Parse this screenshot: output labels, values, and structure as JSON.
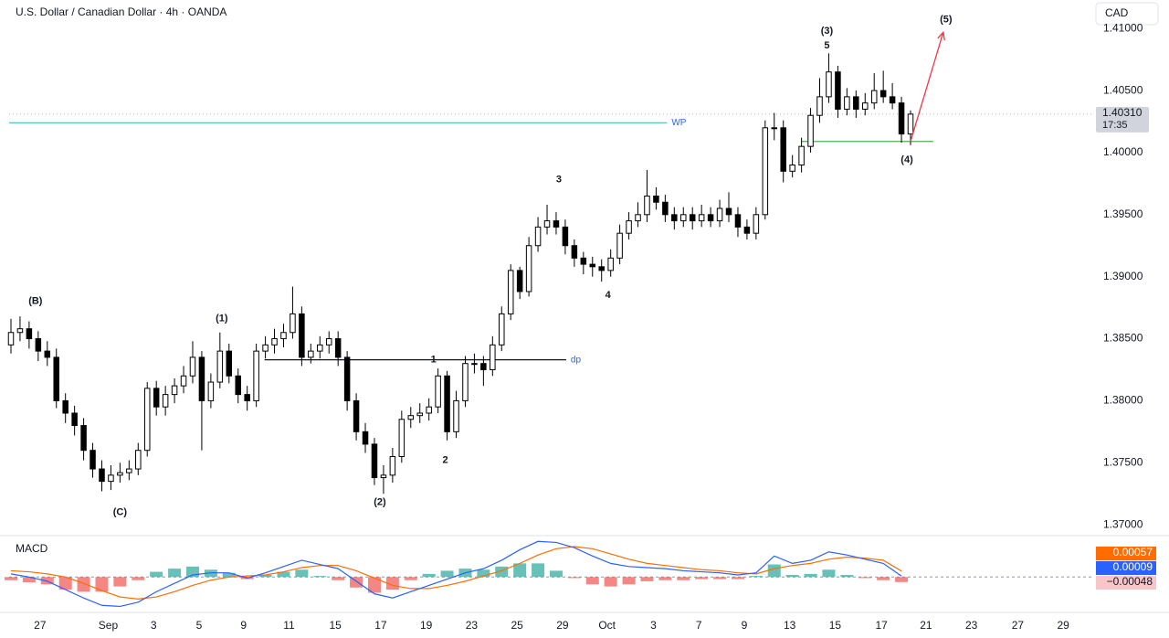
{
  "chart_data": {
    "type": "candlestick",
    "title": "U.S. Dollar / Canadian Dollar · 4h · OANDA",
    "currency": "CAD",
    "up_color": "#ffffff",
    "down_color": "#000000",
    "border_color": "#000000",
    "x": [
      0,
      1,
      2,
      3,
      4,
      5,
      6,
      7,
      8,
      9,
      10,
      11,
      12,
      13,
      14,
      15,
      16,
      17,
      18,
      19,
      20,
      21,
      22,
      23,
      24,
      25,
      26,
      27,
      28,
      29,
      30,
      31,
      32,
      33,
      34,
      35,
      36,
      37,
      38,
      39,
      40,
      41,
      42,
      43,
      44,
      45,
      46,
      47,
      48,
      49,
      50,
      51,
      52,
      53,
      54,
      55,
      56,
      57,
      58,
      59,
      60,
      61,
      62,
      63,
      64,
      65,
      66,
      67,
      68,
      69,
      70,
      71,
      72,
      73,
      74,
      75,
      76,
      77,
      78,
      79,
      80,
      81,
      82,
      83,
      84,
      85,
      86,
      87,
      88,
      89,
      90,
      91,
      92,
      93,
      94,
      95,
      96,
      97,
      98,
      99
    ],
    "open": [
      1.3845,
      1.3855,
      1.3858,
      1.385,
      1.384,
      1.3835,
      1.38,
      1.379,
      1.378,
      1.376,
      1.3745,
      1.3735,
      1.374,
      1.3742,
      1.3745,
      1.376,
      1.381,
      1.3795,
      1.3805,
      1.3812,
      1.382,
      1.3835,
      1.38,
      1.3815,
      1.384,
      1.382,
      1.3805,
      1.38,
      1.384,
      1.3845,
      1.385,
      1.3855,
      1.387,
      1.3835,
      1.384,
      1.3845,
      1.385,
      1.3835,
      1.38,
      1.3775,
      1.3765,
      1.3738,
      1.374,
      1.3755,
      1.3785,
      1.3788,
      1.379,
      1.3795,
      1.382,
      1.3775,
      1.38,
      1.383,
      1.383,
      1.3825,
      1.3845,
      1.387,
      1.3905,
      1.3888,
      1.3925,
      1.394,
      1.3945,
      1.394,
      1.3925,
      1.3915,
      1.391,
      1.3908,
      1.3905,
      1.3915,
      1.3935,
      1.3945,
      1.395,
      1.3965,
      1.396,
      1.395,
      1.3945,
      1.395,
      1.3945,
      1.395,
      1.3945,
      1.3955,
      1.395,
      1.394,
      1.3935,
      1.395,
      1.402,
      1.402,
      1.3985,
      1.399,
      1.4005,
      1.403,
      1.4045,
      1.4065,
      1.4035,
      1.4045,
      1.4035,
      1.404,
      1.405,
      1.4045,
      1.404,
      1.4015
    ],
    "high": [
      1.3866,
      1.3868,
      1.3864,
      1.3856,
      1.3848,
      1.3842,
      1.3806,
      1.3796,
      1.3786,
      1.3766,
      1.3752,
      1.3748,
      1.375,
      1.3752,
      1.3766,
      1.3815,
      1.3816,
      1.3812,
      1.3818,
      1.3828,
      1.3848,
      1.384,
      1.3822,
      1.3855,
      1.3846,
      1.3826,
      1.3812,
      1.3846,
      1.3852,
      1.3858,
      1.3862,
      1.3892,
      1.3876,
      1.3846,
      1.3852,
      1.3856,
      1.3856,
      1.384,
      1.3806,
      1.3782,
      1.377,
      1.3748,
      1.3762,
      1.3792,
      1.3795,
      1.3798,
      1.3802,
      1.3826,
      1.3824,
      1.3808,
      1.3836,
      1.3838,
      1.3836,
      1.3852,
      1.3876,
      1.391,
      1.3908,
      1.3932,
      1.3948,
      1.3958,
      1.3952,
      1.3946,
      1.393,
      1.392,
      1.3916,
      1.3914,
      1.3922,
      1.3942,
      1.3952,
      1.396,
      1.3986,
      1.3972,
      1.3966,
      1.3956,
      1.3956,
      1.3956,
      1.3958,
      1.3956,
      1.3962,
      1.3968,
      1.3956,
      1.3946,
      1.3956,
      1.4026,
      1.4032,
      1.4026,
      1.3998,
      1.4012,
      1.4036,
      1.406,
      1.408,
      1.407,
      1.4052,
      1.405,
      1.4048,
      1.4064,
      1.4066,
      1.4056,
      1.4045,
      1.4034
    ],
    "low": [
      1.3838,
      1.3848,
      1.3842,
      1.3832,
      1.3828,
      1.3794,
      1.3782,
      1.3772,
      1.3752,
      1.3738,
      1.3727,
      1.3728,
      1.3734,
      1.3736,
      1.374,
      1.3755,
      1.3788,
      1.3788,
      1.3798,
      1.3806,
      1.3814,
      1.376,
      1.3794,
      1.381,
      1.3814,
      1.3798,
      1.3792,
      1.3795,
      1.3834,
      1.3838,
      1.3843,
      1.385,
      1.3828,
      1.383,
      1.3834,
      1.3838,
      1.3828,
      1.3792,
      1.3768,
      1.3758,
      1.3732,
      1.3725,
      1.3734,
      1.375,
      1.3778,
      1.3782,
      1.3784,
      1.379,
      1.3768,
      1.377,
      1.3795,
      1.3822,
      1.3812,
      1.382,
      1.384,
      1.3865,
      1.3882,
      1.3884,
      1.392,
      1.3934,
      1.3934,
      1.3918,
      1.3908,
      1.3902,
      1.39,
      1.3896,
      1.39,
      1.391,
      1.393,
      1.394,
      1.3944,
      1.3954,
      1.3944,
      1.3938,
      1.394,
      1.3938,
      1.394,
      1.394,
      1.394,
      1.3944,
      1.3932,
      1.393,
      1.393,
      1.3946,
      1.401,
      1.3976,
      1.398,
      1.3984,
      1.4,
      1.4024,
      1.404,
      1.4028,
      1.403,
      1.4028,
      1.403,
      1.4035,
      1.404,
      1.4035,
      1.4008,
      1.4006
    ],
    "close": [
      1.3855,
      1.3858,
      1.385,
      1.384,
      1.3835,
      1.38,
      1.379,
      1.378,
      1.376,
      1.3745,
      1.3735,
      1.374,
      1.3742,
      1.3745,
      1.376,
      1.381,
      1.3795,
      1.3805,
      1.3812,
      1.382,
      1.3835,
      1.38,
      1.3815,
      1.384,
      1.382,
      1.3805,
      1.38,
      1.384,
      1.3845,
      1.385,
      1.3855,
      1.387,
      1.3835,
      1.384,
      1.3845,
      1.385,
      1.3835,
      1.38,
      1.3775,
      1.3765,
      1.3738,
      1.374,
      1.3755,
      1.3785,
      1.3788,
      1.379,
      1.3795,
      1.382,
      1.3775,
      1.38,
      1.383,
      1.383,
      1.3825,
      1.3845,
      1.387,
      1.3905,
      1.3888,
      1.3925,
      1.394,
      1.3945,
      1.394,
      1.3925,
      1.3915,
      1.391,
      1.3908,
      1.3905,
      1.3915,
      1.3935,
      1.3945,
      1.395,
      1.3965,
      1.396,
      1.395,
      1.3945,
      1.395,
      1.3945,
      1.395,
      1.3945,
      1.3955,
      1.395,
      1.394,
      1.3935,
      1.395,
      1.402,
      1.402,
      1.3985,
      1.399,
      1.4005,
      1.403,
      1.4045,
      1.4065,
      1.4035,
      1.4045,
      1.4035,
      1.404,
      1.405,
      1.4045,
      1.404,
      1.4015,
      1.4031
    ],
    "xlim": [
      -0.2,
      119
    ],
    "xticks": [
      {
        "value": 3.2,
        "label": "27"
      },
      {
        "value": 10.7,
        "label": "Sep"
      },
      {
        "value": 15.7,
        "label": "3"
      },
      {
        "value": 20.7,
        "label": "5"
      },
      {
        "value": 25.6,
        "label": "9"
      },
      {
        "value": 30.6,
        "label": "11"
      },
      {
        "value": 35.7,
        "label": "15"
      },
      {
        "value": 40.7,
        "label": "17"
      },
      {
        "value": 45.7,
        "label": "19"
      },
      {
        "value": 50.7,
        "label": "23"
      },
      {
        "value": 55.7,
        "label": "25"
      },
      {
        "value": 60.7,
        "label": "29"
      },
      {
        "value": 65.6,
        "label": "Oct"
      },
      {
        "value": 70.7,
        "label": "3"
      },
      {
        "value": 75.7,
        "label": "7"
      },
      {
        "value": 80.7,
        "label": "9"
      },
      {
        "value": 85.7,
        "label": "13"
      },
      {
        "value": 90.7,
        "label": "15"
      },
      {
        "value": 95.8,
        "label": "17"
      },
      {
        "value": 100.7,
        "label": "21"
      },
      {
        "value": 105.7,
        "label": "23"
      },
      {
        "value": 110.8,
        "label": "27"
      },
      {
        "value": 115.8,
        "label": "29"
      }
    ],
    "ylim": [
      1.3692,
      1.4123
    ],
    "yticks": [
      {
        "value": 1.37,
        "label": "1.37000"
      },
      {
        "value": 1.375,
        "label": "1.37500"
      },
      {
        "value": 1.38,
        "label": "1.38000"
      },
      {
        "value": 1.385,
        "label": "1.38500"
      },
      {
        "value": 1.39,
        "label": "1.39000"
      },
      {
        "value": 1.395,
        "label": "1.39500"
      },
      {
        "value": 1.4,
        "label": "1.40000"
      },
      {
        "value": 1.405,
        "label": "1.40500"
      },
      {
        "value": 1.41,
        "label": "1.41000"
      }
    ],
    "grid": false,
    "hlines": [
      {
        "label": "WP",
        "value": 1.4024,
        "x": [
          -0.2,
          72.2
        ],
        "color": "#5fc4c0",
        "label_color": "#2962ff"
      },
      {
        "label": "dp",
        "value": 1.3833,
        "x": [
          27.9,
          61.1
        ],
        "color": "#131722",
        "label_color": "#2962ff"
      },
      {
        "value": 1.4009,
        "x": [
          87,
          101.5
        ],
        "color": "#4caf50"
      }
    ],
    "arrow": {
      "x": [
        99,
        102.6
      ],
      "y": [
        1.4009,
        1.4097
      ],
      "color": "#f23645"
    },
    "annotations": [
      {
        "text": "(B)",
        "x": 2.7,
        "y": 1.388
      },
      {
        "text": "(C)",
        "x": 12,
        "y": 1.371
      },
      {
        "text": "(1)",
        "x": 23.2,
        "y": 1.3866
      },
      {
        "text": "(2)",
        "x": 40.6,
        "y": 1.3718
      },
      {
        "text": "1",
        "x": 46.5,
        "y": 1.3833
      },
      {
        "text": "2",
        "x": 47.8,
        "y": 1.3752
      },
      {
        "text": "3",
        "x": 60.3,
        "y": 1.3978
      },
      {
        "text": "4",
        "x": 65.7,
        "y": 1.3885
      },
      {
        "text": "(3)",
        "x": 89.8,
        "y": 1.4098
      },
      {
        "text": "5",
        "x": 89.8,
        "y": 1.4086
      },
      {
        "text": "(4)",
        "x": 98.6,
        "y": 1.3994
      },
      {
        "text": "(5)",
        "x": 102.9,
        "y": 1.4107
      }
    ],
    "last_price": {
      "value": 1.4031,
      "label": "1.40310",
      "countdown": "17:35"
    },
    "macd": {
      "title": "MACD",
      "ylim": [
        -0.0032,
        0.0036
      ],
      "zero_line": true,
      "x": [
        0,
        2,
        4,
        6,
        8,
        10,
        12,
        14,
        16,
        18,
        20,
        22,
        24,
        26,
        28,
        30,
        32,
        34,
        36,
        38,
        40,
        42,
        44,
        46,
        48,
        50,
        52,
        54,
        56,
        58,
        60,
        62,
        64,
        66,
        68,
        70,
        72,
        74,
        76,
        78,
        80,
        82,
        84,
        86,
        88,
        90,
        92,
        94,
        96,
        98
      ],
      "histogram": {
        "up_color": "#26a69a",
        "down_color": "#ef5350",
        "last_label": "−0.00048",
        "label_bg": "#f8c6c8",
        "values": [
          -0.0003,
          -0.0005,
          -0.0007,
          -0.0012,
          -0.0014,
          -0.0014,
          -0.0009,
          -0.0003,
          0.0005,
          0.0008,
          0.001,
          0.0007,
          0.0004,
          -0.0002,
          0.0002,
          0.0005,
          0.0007,
          0.0001,
          -0.0003,
          -0.001,
          -0.0015,
          -0.0012,
          -0.0003,
          0.0003,
          0.0006,
          0.0008,
          0.0007,
          0.001,
          0.0013,
          0.0013,
          0.0006,
          -0.0001,
          -0.0007,
          -0.0009,
          -0.0007,
          -0.0004,
          -0.0003,
          -0.0003,
          -0.0002,
          -0.0002,
          -0.0002,
          0.0001,
          0.0012,
          0.0002,
          0.0003,
          0.0007,
          0.0002,
          -0.0001,
          -0.0003,
          -0.00048
        ]
      },
      "lines": [
        {
          "color": "#ff6d00",
          "last_label": "0.00057",
          "values": [
            0.0006,
            0.0005,
            0.0003,
            0,
            -0.0006,
            -0.0013,
            -0.0019,
            -0.0021,
            -0.0019,
            -0.0014,
            -0.0008,
            -0.0003,
            0,
            0.0001,
            0.0002,
            0.0005,
            0.0009,
            0.0011,
            0.0011,
            0.0006,
            -0.0001,
            -0.0008,
            -0.0011,
            -0.0011,
            -0.0008,
            -0.0004,
            0.0001,
            0.0006,
            0.0013,
            0.0021,
            0.0027,
            0.0029,
            0.0027,
            0.0022,
            0.0017,
            0.0013,
            0.0011,
            0.0009,
            0.0007,
            0.0006,
            0.0004,
            0.0003,
            0.0008,
            0.0011,
            0.0013,
            0.0017,
            0.0019,
            0.0018,
            0.0016,
            0.00057
          ]
        },
        {
          "color": "#2962ff",
          "last_label": "0.00009",
          "values": [
            0.0003,
            0,
            -0.0004,
            -0.0012,
            -0.002,
            -0.0027,
            -0.0028,
            -0.0024,
            -0.0014,
            -0.0006,
            0.0002,
            0.0004,
            0.0004,
            -0.0001,
            0.0004,
            0.001,
            0.0016,
            0.0012,
            0.0008,
            -0.0004,
            -0.0016,
            -0.002,
            -0.0014,
            -0.0008,
            -0.0002,
            0.0004,
            0.0008,
            0.0016,
            0.0026,
            0.0034,
            0.0033,
            0.0028,
            0.002,
            0.0013,
            0.001,
            0.0009,
            0.0008,
            0.0006,
            0.0005,
            0.0004,
            0.0002,
            0.0004,
            0.002,
            0.0013,
            0.0016,
            0.0024,
            0.0021,
            0.0017,
            0.0013,
            9e-05
          ]
        }
      ]
    }
  }
}
